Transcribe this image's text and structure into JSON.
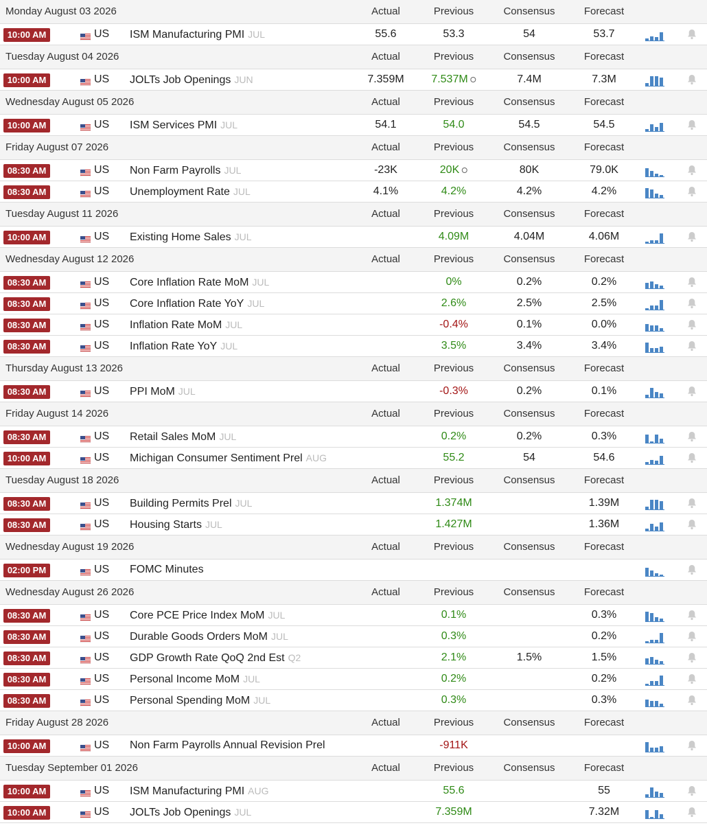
{
  "columns": [
    "Actual",
    "Previous",
    "Consensus",
    "Forecast"
  ],
  "groups": [
    {
      "date": "Monday August 03 2026",
      "rows": [
        {
          "time": "10:00 AM",
          "country": "US",
          "event": "ISM Manufacturing PMI",
          "period": "JUL",
          "actual": "55.6",
          "previous": "53.3",
          "consensus": "54",
          "forecast": "53.7",
          "previous_color": "default",
          "revised": false
        }
      ]
    },
    {
      "date": "Tuesday August 04 2026",
      "rows": [
        {
          "time": "10:00 AM",
          "country": "US",
          "event": "JOLTs Job Openings",
          "period": "JUN",
          "actual": "7.359M",
          "previous": "7.537M",
          "consensus": "7.4M",
          "forecast": "7.3M",
          "previous_color": "green",
          "revised": true
        }
      ]
    },
    {
      "date": "Wednesday August 05 2026",
      "rows": [
        {
          "time": "10:00 AM",
          "country": "US",
          "event": "ISM Services PMI",
          "period": "JUL",
          "actual": "54.1",
          "previous": "54.0",
          "consensus": "54.5",
          "forecast": "54.5",
          "previous_color": "green",
          "revised": false
        }
      ]
    },
    {
      "date": "Friday August 07 2026",
      "rows": [
        {
          "time": "08:30 AM",
          "country": "US",
          "event": "Non Farm Payrolls",
          "period": "JUL",
          "actual": "-23K",
          "previous": "20K",
          "consensus": "80K",
          "forecast": "79.0K",
          "previous_color": "green",
          "revised": true
        },
        {
          "time": "08:30 AM",
          "country": "US",
          "event": "Unemployment Rate",
          "period": "JUL",
          "actual": "4.1%",
          "previous": "4.2%",
          "consensus": "4.2%",
          "forecast": "4.2%",
          "previous_color": "green",
          "revised": false
        }
      ]
    },
    {
      "date": "Tuesday August 11 2026",
      "rows": [
        {
          "time": "10:00 AM",
          "country": "US",
          "event": "Existing Home Sales",
          "period": "JUL",
          "actual": null,
          "previous": "4.09M",
          "consensus": "4.04M",
          "forecast": "4.06M",
          "previous_color": "green",
          "revised": false
        }
      ]
    },
    {
      "date": "Wednesday August 12 2026",
      "rows": [
        {
          "time": "08:30 AM",
          "country": "US",
          "event": "Core Inflation Rate MoM",
          "period": "JUL",
          "actual": null,
          "previous": "0%",
          "consensus": "0.2%",
          "forecast": "0.2%",
          "previous_color": "green",
          "revised": false
        },
        {
          "time": "08:30 AM",
          "country": "US",
          "event": "Core Inflation Rate YoY",
          "period": "JUL",
          "actual": null,
          "previous": "2.6%",
          "consensus": "2.5%",
          "forecast": "2.5%",
          "previous_color": "green",
          "revised": false
        },
        {
          "time": "08:30 AM",
          "country": "US",
          "event": "Inflation Rate MoM",
          "period": "JUL",
          "actual": null,
          "previous": "-0.4%",
          "consensus": "0.1%",
          "forecast": "0.0%",
          "previous_color": "red",
          "revised": false
        },
        {
          "time": "08:30 AM",
          "country": "US",
          "event": "Inflation Rate YoY",
          "period": "JUL",
          "actual": null,
          "previous": "3.5%",
          "consensus": "3.4%",
          "forecast": "3.4%",
          "previous_color": "green",
          "revised": false
        }
      ]
    },
    {
      "date": "Thursday August 13 2026",
      "rows": [
        {
          "time": "08:30 AM",
          "country": "US",
          "event": "PPI MoM",
          "period": "JUL",
          "actual": null,
          "previous": "-0.3%",
          "consensus": "0.2%",
          "forecast": "0.1%",
          "previous_color": "red",
          "revised": false
        }
      ]
    },
    {
      "date": "Friday August 14 2026",
      "rows": [
        {
          "time": "08:30 AM",
          "country": "US",
          "event": "Retail Sales MoM",
          "period": "JUL",
          "actual": null,
          "previous": "0.2%",
          "consensus": "0.2%",
          "forecast": "0.3%",
          "previous_color": "green",
          "revised": false
        },
        {
          "time": "10:00 AM",
          "country": "US",
          "event": "Michigan Consumer Sentiment Prel",
          "period": "AUG",
          "actual": null,
          "previous": "55.2",
          "consensus": "54",
          "forecast": "54.6",
          "previous_color": "green",
          "revised": false
        }
      ]
    },
    {
      "date": "Tuesday August 18 2026",
      "rows": [
        {
          "time": "08:30 AM",
          "country": "US",
          "event": "Building Permits Prel",
          "period": "JUL",
          "actual": null,
          "previous": "1.374M",
          "consensus": null,
          "forecast": "1.39M",
          "previous_color": "green",
          "revised": false
        },
        {
          "time": "08:30 AM",
          "country": "US",
          "event": "Housing Starts",
          "period": "JUL",
          "actual": null,
          "previous": "1.427M",
          "consensus": null,
          "forecast": "1.36M",
          "previous_color": "green",
          "revised": false
        }
      ]
    },
    {
      "date": "Wednesday August 19 2026",
      "rows": [
        {
          "time": "02:00 PM",
          "country": "US",
          "event": "FOMC Minutes",
          "period": null,
          "actual": null,
          "previous": null,
          "consensus": null,
          "forecast": null,
          "previous_color": "default",
          "revised": false
        }
      ]
    },
    {
      "date": "Wednesday August 26 2026",
      "rows": [
        {
          "time": "08:30 AM",
          "country": "US",
          "event": "Core PCE Price Index MoM",
          "period": "JUL",
          "actual": null,
          "previous": "0.1%",
          "consensus": null,
          "forecast": "0.3%",
          "previous_color": "green",
          "revised": false
        },
        {
          "time": "08:30 AM",
          "country": "US",
          "event": "Durable Goods Orders MoM",
          "period": "JUL",
          "actual": null,
          "previous": "0.3%",
          "consensus": null,
          "forecast": "0.2%",
          "previous_color": "green",
          "revised": false
        },
        {
          "time": "08:30 AM",
          "country": "US",
          "event": "GDP Growth Rate QoQ 2nd Est",
          "period": "Q2",
          "actual": null,
          "previous": "2.1%",
          "consensus": "1.5%",
          "forecast": "1.5%",
          "previous_color": "green",
          "revised": false
        },
        {
          "time": "08:30 AM",
          "country": "US",
          "event": "Personal Income MoM",
          "period": "JUL",
          "actual": null,
          "previous": "0.2%",
          "consensus": null,
          "forecast": "0.2%",
          "previous_color": "green",
          "revised": false
        },
        {
          "time": "08:30 AM",
          "country": "US",
          "event": "Personal Spending MoM",
          "period": "JUL",
          "actual": null,
          "previous": "0.3%",
          "consensus": null,
          "forecast": "0.3%",
          "previous_color": "green",
          "revised": false
        }
      ]
    },
    {
      "date": "Friday August 28 2026",
      "rows": [
        {
          "time": "10:00 AM",
          "country": "US",
          "event": "Non Farm Payrolls Annual Revision Prel",
          "period": null,
          "actual": null,
          "previous": "-911K",
          "consensus": null,
          "forecast": null,
          "previous_color": "red",
          "revised": false
        }
      ]
    },
    {
      "date": "Tuesday September 01 2026",
      "rows": [
        {
          "time": "10:00 AM",
          "country": "US",
          "event": "ISM Manufacturing PMI",
          "period": "AUG",
          "actual": null,
          "previous": "55.6",
          "consensus": null,
          "forecast": "55",
          "previous_color": "green",
          "revised": false
        },
        {
          "time": "10:00 AM",
          "country": "US",
          "event": "JOLTs Job Openings",
          "period": "JUL",
          "actual": null,
          "previous": "7.359M",
          "consensus": null,
          "forecast": "7.32M",
          "previous_color": "green",
          "revised": false
        }
      ]
    }
  ]
}
